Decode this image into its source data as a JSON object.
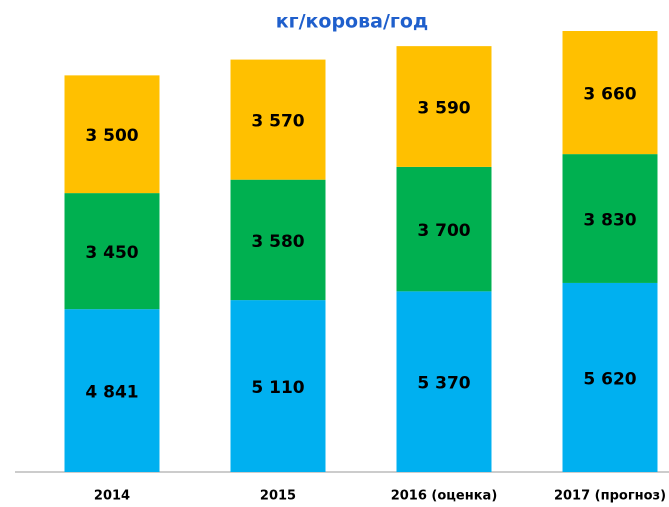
{
  "chart_data": {
    "type": "stacked_bar",
    "title": "кг/корова/год",
    "categories": [
      "2014",
      "2015",
      "2016 (оценка)",
      "2017 (прогноз)"
    ],
    "series": [
      {
        "color": "#00b0f0",
        "values": [
          4841,
          5110,
          5370,
          5620
        ],
        "value_labels": [
          "4 841",
          "5 110",
          "5 370",
          "5 620"
        ]
      },
      {
        "color": "#00b050",
        "values": [
          3450,
          3580,
          3700,
          3830
        ],
        "value_labels": [
          "3 450",
          "3 580",
          "3 700",
          "3 830"
        ]
      },
      {
        "color": "#ffc000",
        "values": [
          3500,
          3570,
          3590,
          3660
        ],
        "value_labels": [
          "3 500",
          "3 570",
          "3 590",
          "3 660"
        ]
      }
    ]
  }
}
